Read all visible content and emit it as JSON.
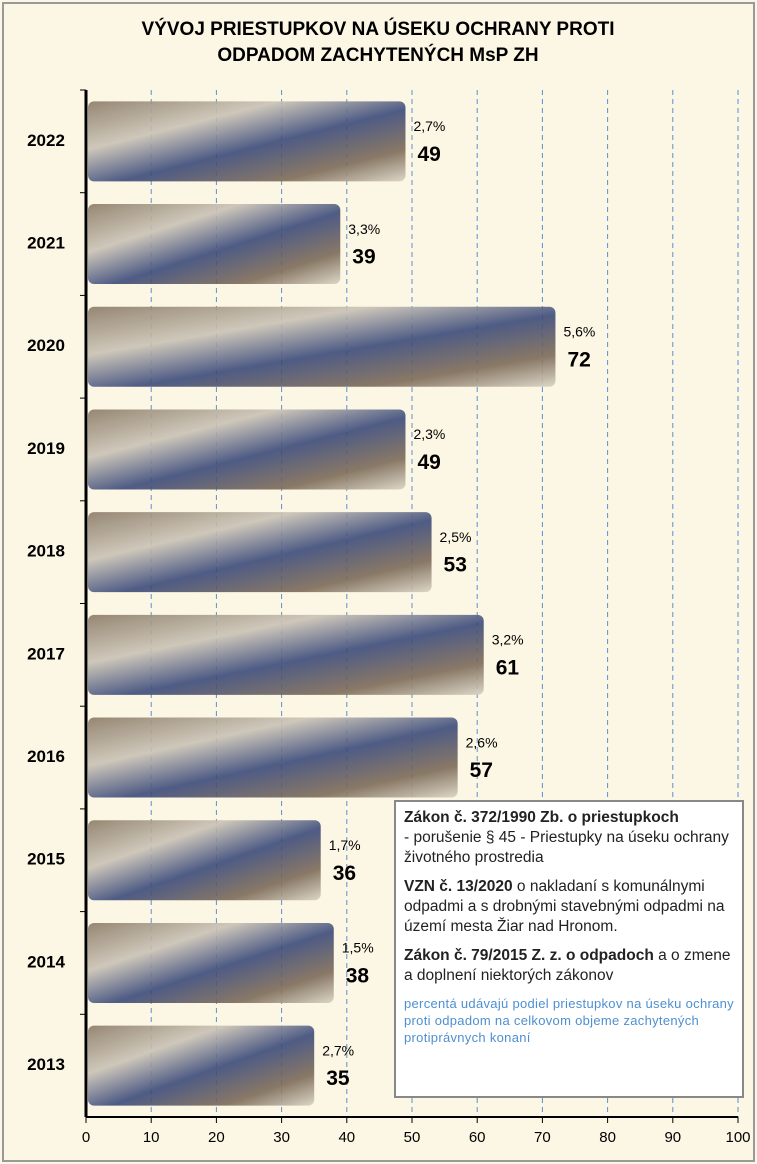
{
  "chart_data": {
    "type": "bar",
    "orientation": "horizontal",
    "title": [
      "VÝVOJ PRIESTUPKOV NA ÚSEKU OCHRANY PROTI",
      "ODPADOM ZACHYTENÝCH MsP ZH"
    ],
    "categories": [
      "2022",
      "2021",
      "2020",
      "2019",
      "2018",
      "2017",
      "2016",
      "2015",
      "2014",
      "2013"
    ],
    "values": [
      49,
      39,
      72,
      49,
      53,
      61,
      57,
      36,
      38,
      35
    ],
    "share_labels": [
      "2,7%",
      "3,3%",
      "5,6%",
      "2,3%",
      "2,5%",
      "3,2%",
      "2,6%",
      "1,7%",
      "1,5%",
      "2,7%"
    ],
    "xlim": [
      0,
      100
    ],
    "xticks": [
      0,
      10,
      20,
      30,
      40,
      50,
      60,
      70,
      80,
      90,
      100
    ],
    "grid": true,
    "notes": [
      {
        "bold": "Zákon č. 372/1990 Zb.",
        "bold2": "o priestupkoch",
        "text": "- porušenie § 45 - Priestupky na úseku ochrany životného prostredia"
      },
      {
        "bold": "VZN č. 13/2020",
        "text": "o nakladaní s komunálnymi odpadmi a s drobnými stavebnými odpadmi na území mesta Žiar nad Hronom."
      },
      {
        "bold": "Zákon č. 79/2015 Z. z. o odpadoch",
        "text": "a o zmene a doplnení niektorých zákonov"
      }
    ],
    "footnote": "percentá udávajú podiel priestupkov na úseku ochrany proti odpadom na celkovom objeme zachytených protiprávnych konaní"
  }
}
